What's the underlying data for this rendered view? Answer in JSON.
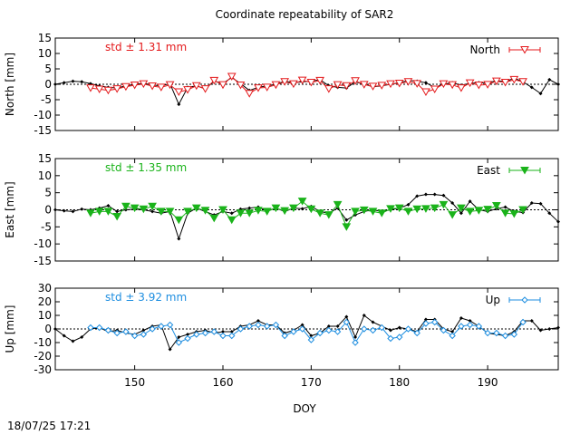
{
  "title": "Coordinate repeatability of SAR2",
  "timestamp": "18/07/25 17:21",
  "colors": {
    "north": "#e41a1c",
    "east": "#1ab31a",
    "up": "#1e8ee0",
    "ref": "#000000"
  },
  "chart_data": {
    "type": "line",
    "xlabel": "DOY",
    "xlim": [
      141,
      198
    ],
    "xticks": [
      150,
      160,
      170,
      180,
      190
    ],
    "grid": false,
    "legend_position": "top-right",
    "panels": [
      {
        "key": "north",
        "ylabel": "North [mm]",
        "ylim": [
          -15,
          15
        ],
        "yticks": [
          -15,
          -10,
          -5,
          0,
          5,
          10,
          15
        ],
        "std_label": "std ± 1.31 mm",
        "legend": "North",
        "marker": "triangle-down-open",
        "reference": {
          "x": [
            141,
            142,
            143,
            144,
            145,
            146,
            147,
            148,
            149,
            150,
            151,
            152,
            153,
            154,
            155,
            156,
            157,
            158,
            159,
            160,
            161,
            162,
            163,
            164,
            165,
            166,
            167,
            168,
            169,
            170,
            171,
            172,
            173,
            174,
            175,
            176,
            177,
            178,
            179,
            180,
            181,
            182,
            183,
            184,
            185,
            186,
            187,
            188,
            189,
            190,
            191,
            192,
            193,
            194,
            195,
            196,
            197,
            198
          ],
          "y": [
            0,
            0.5,
            1,
            0.8,
            0.2,
            -0.5,
            -1,
            -1.2,
            -0.5,
            0,
            0.3,
            -0.2,
            -0.5,
            0.2,
            -6.5,
            -1,
            -0.5,
            -1.5,
            1,
            0.3,
            2.2,
            0.2,
            -2,
            -1,
            -0.5,
            0,
            1,
            0.5,
            0.8,
            1,
            1.5,
            -0.5,
            -1,
            -1.2,
            0.8,
            0,
            -0.8,
            -0.5,
            0,
            0.5,
            1.2,
            1,
            0.5,
            -1,
            0,
            0.5,
            -0.3,
            0.3,
            0.5,
            0.4,
            1.2,
            0.8,
            2,
            0.8,
            -1,
            -3,
            1.5,
            0
          ]
        },
        "series": {
          "x": [
            145,
            146,
            147,
            148,
            149,
            150,
            151,
            152,
            153,
            154,
            155,
            156,
            157,
            158,
            159,
            160,
            161,
            162,
            163,
            164,
            165,
            166,
            167,
            168,
            169,
            170,
            171,
            172,
            173,
            174,
            175,
            176,
            177,
            178,
            179,
            180,
            181,
            182,
            183,
            184,
            185,
            186,
            187,
            188,
            189,
            190,
            191,
            192,
            193,
            194
          ],
          "y": [
            -1.2,
            -1.6,
            -2,
            -1.5,
            -0.8,
            -0.3,
            0.1,
            -0.6,
            -1,
            -0.2,
            -2.5,
            -1.8,
            -0.5,
            -1.5,
            1.2,
            -0.2,
            2.5,
            -0.3,
            -3,
            -1.2,
            -1,
            -0.2,
            0.8,
            0.1,
            1.3,
            0.6,
            1.2,
            -1.5,
            -0.2,
            -0.5,
            1.1,
            -0.1,
            -0.7,
            -0.4,
            0.1,
            0.3,
            0.8,
            0.2,
            -2.5,
            -1.6,
            0.1,
            -0.2,
            -1.2,
            0.4,
            -0.3,
            -0.1,
            1,
            0.6,
            1.5,
            0.8
          ]
        }
      },
      {
        "key": "east",
        "ylabel": "East [mm]",
        "ylim": [
          -15,
          15
        ],
        "yticks": [
          -15,
          -10,
          -5,
          0,
          5,
          10,
          15
        ],
        "std_label": "std ± 1.35 mm",
        "legend": "East",
        "marker": "triangle-down-filled",
        "reference": {
          "x": [
            141,
            142,
            143,
            144,
            145,
            146,
            147,
            148,
            149,
            150,
            151,
            152,
            153,
            154,
            155,
            156,
            157,
            158,
            159,
            160,
            161,
            162,
            163,
            164,
            165,
            166,
            167,
            168,
            169,
            170,
            171,
            172,
            173,
            174,
            175,
            176,
            177,
            178,
            179,
            180,
            181,
            182,
            183,
            184,
            185,
            186,
            187,
            188,
            189,
            190,
            191,
            192,
            193,
            194,
            195,
            196,
            197,
            198
          ],
          "y": [
            0,
            -0.3,
            -0.5,
            0.2,
            0,
            0.5,
            1.2,
            -0.5,
            0,
            0.2,
            0,
            -0.5,
            -1,
            -0.5,
            -8.5,
            -1,
            0.5,
            -0.5,
            -1.5,
            -0.5,
            -1,
            0.2,
            0.5,
            0.8,
            -0.3,
            0.5,
            -0.5,
            0.5,
            0.3,
            1,
            -0.5,
            -1,
            0.5,
            -3,
            -1.5,
            -0.5,
            0,
            -0.5,
            0,
            0.5,
            1.5,
            4,
            4.5,
            4.5,
            4.2,
            2,
            -1,
            2.5,
            0,
            -0.5,
            0.3,
            0.8,
            -0.5,
            -0.8,
            2,
            1.8,
            -1,
            -3.5
          ]
        },
        "series": {
          "x": [
            145,
            146,
            147,
            148,
            149,
            150,
            151,
            152,
            153,
            154,
            155,
            156,
            157,
            158,
            159,
            160,
            161,
            162,
            163,
            164,
            165,
            166,
            167,
            168,
            169,
            170,
            171,
            172,
            173,
            174,
            175,
            176,
            177,
            178,
            179,
            180,
            181,
            182,
            183,
            184,
            185,
            186,
            187,
            188,
            189,
            190,
            191,
            192,
            193,
            194
          ],
          "y": [
            -1,
            -0.5,
            -0.5,
            -2,
            1,
            0.5,
            0.2,
            1,
            -0.5,
            -0.5,
            -3,
            -0.5,
            0.5,
            -0.2,
            -2.5,
            0,
            -3,
            -1,
            -1,
            -0.2,
            -0.5,
            0.5,
            -0.3,
            0.5,
            2.5,
            0.2,
            -1,
            -1.5,
            1.5,
            -5,
            -0.5,
            -0.1,
            -0.5,
            -1,
            0.3,
            0.5,
            -0.5,
            0.2,
            0.3,
            0.5,
            1.5,
            -1.5,
            0.5,
            -0.5,
            -0.2,
            0.1,
            1.2,
            -1,
            -1.2,
            0
          ]
        }
      },
      {
        "key": "up",
        "ylabel": "Up [mm]",
        "ylim": [
          -30,
          30
        ],
        "yticks": [
          -30,
          -20,
          -10,
          0,
          10,
          20,
          30
        ],
        "std_label": "std ± 3.92 mm",
        "legend": "Up",
        "marker": "diamond-open",
        "reference": {
          "x": [
            141,
            142,
            143,
            144,
            145,
            146,
            147,
            148,
            149,
            150,
            151,
            152,
            153,
            154,
            155,
            156,
            157,
            158,
            159,
            160,
            161,
            162,
            163,
            164,
            165,
            166,
            167,
            168,
            169,
            170,
            171,
            172,
            173,
            174,
            175,
            176,
            177,
            178,
            179,
            180,
            181,
            182,
            183,
            184,
            185,
            186,
            187,
            188,
            189,
            190,
            191,
            192,
            193,
            194,
            195,
            196,
            197,
            198
          ],
          "y": [
            0,
            -5,
            -9,
            -6,
            0,
            1,
            -2,
            -1,
            -3,
            -4,
            -1,
            2,
            3,
            -15,
            -6,
            -4,
            -2,
            -1,
            -3,
            -2,
            -2,
            2,
            3,
            6,
            3,
            3,
            -3,
            -1,
            3,
            -5,
            -3,
            2,
            2,
            9,
            -6,
            10,
            5,
            2,
            -1,
            1,
            0,
            -2,
            7,
            7,
            0,
            -2,
            8,
            6,
            2,
            -3,
            -4,
            -5,
            -2,
            6,
            6,
            -1,
            0,
            1
          ]
        },
        "series": {
          "x": [
            145,
            146,
            147,
            148,
            149,
            150,
            151,
            152,
            153,
            154,
            155,
            156,
            157,
            158,
            159,
            160,
            161,
            162,
            163,
            164,
            165,
            166,
            167,
            168,
            169,
            170,
            171,
            172,
            173,
            174,
            175,
            176,
            177,
            178,
            179,
            180,
            181,
            182,
            183,
            184,
            185,
            186,
            187,
            188,
            189,
            190,
            191,
            192,
            193,
            194
          ],
          "y": [
            1,
            1,
            -1,
            -3,
            -2,
            -5,
            -4,
            0,
            2,
            3,
            -10,
            -7,
            -4,
            -3,
            -2,
            -5,
            -5,
            0,
            2,
            3,
            2,
            3,
            -5,
            -2,
            0,
            -8,
            -3,
            -1,
            -2,
            5,
            -10,
            0,
            -1,
            1,
            -7,
            -6,
            0,
            -3,
            4,
            5,
            -1,
            -5,
            2,
            3,
            2,
            -3,
            -3,
            -5,
            -4,
            5
          ]
        }
      }
    ]
  }
}
